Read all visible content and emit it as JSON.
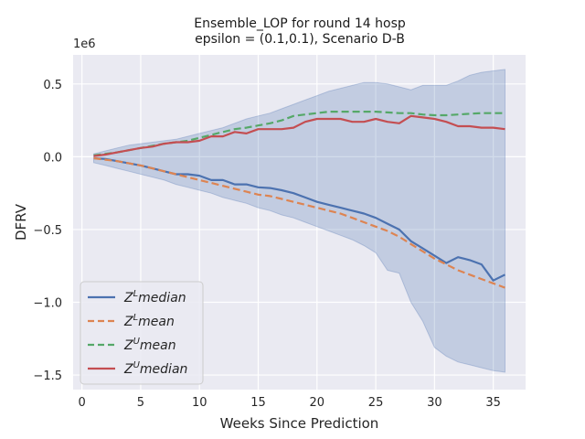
{
  "chart_data": {
    "type": "line",
    "title": "Ensemble_LOP for round 14 hosp",
    "subtitle": "epsilon = (0.1,0.1), Scenario D-B",
    "xlabel": "Weeks Since Prediction",
    "ylabel": "DFRV",
    "y_offset_text": "1e6",
    "xlim": [
      -0.75,
      37.75
    ],
    "ylim": [
      -1.6,
      0.7
    ],
    "y_scale_factor": 1000000,
    "x_ticks": [
      0,
      5,
      10,
      15,
      20,
      25,
      30,
      35
    ],
    "y_ticks": [
      0.5,
      0.0,
      -0.5,
      -1.0,
      -1.5
    ],
    "y_tick_labels": [
      "0.5",
      "0.0",
      "−0.5",
      "−1.0",
      "−1.5"
    ],
    "grid": true,
    "legend_position": "lower-left",
    "x": [
      1,
      2,
      3,
      4,
      5,
      6,
      7,
      8,
      9,
      10,
      11,
      12,
      13,
      14,
      15,
      16,
      17,
      18,
      19,
      20,
      21,
      22,
      23,
      24,
      25,
      26,
      27,
      28,
      29,
      30,
      31,
      32,
      33,
      34,
      35,
      36
    ],
    "band": {
      "upper": [
        0.02,
        0.04,
        0.06,
        0.08,
        0.09,
        0.1,
        0.11,
        0.12,
        0.14,
        0.16,
        0.18,
        0.2,
        0.23,
        0.26,
        0.28,
        0.3,
        0.33,
        0.36,
        0.39,
        0.42,
        0.45,
        0.47,
        0.49,
        0.51,
        0.51,
        0.5,
        0.48,
        0.46,
        0.49,
        0.49,
        0.49,
        0.52,
        0.56,
        0.58,
        0.59,
        0.6
      ],
      "lower": [
        -0.04,
        -0.06,
        -0.08,
        -0.1,
        -0.12,
        -0.14,
        -0.16,
        -0.19,
        -0.21,
        -0.23,
        -0.25,
        -0.28,
        -0.3,
        -0.32,
        -0.35,
        -0.37,
        -0.4,
        -0.42,
        -0.45,
        -0.48,
        -0.51,
        -0.54,
        -0.57,
        -0.61,
        -0.66,
        -0.78,
        -0.8,
        -1.0,
        -1.13,
        -1.31,
        -1.37,
        -1.41,
        -1.43,
        -1.45,
        -1.47,
        -1.48
      ]
    },
    "series": [
      {
        "name": "Z^L median",
        "color": "#4c72b0",
        "dash": "solid",
        "values": [
          -0.01,
          -0.015,
          -0.03,
          -0.045,
          -0.06,
          -0.08,
          -0.1,
          -0.12,
          -0.12,
          -0.13,
          -0.16,
          -0.16,
          -0.19,
          -0.19,
          -0.21,
          -0.215,
          -0.23,
          -0.25,
          -0.28,
          -0.31,
          -0.33,
          -0.35,
          -0.37,
          -0.39,
          -0.42,
          -0.46,
          -0.5,
          -0.58,
          -0.63,
          -0.68,
          -0.73,
          -0.69,
          -0.71,
          -0.74,
          -0.85,
          -0.81
        ]
      },
      {
        "name": "Z^L mean",
        "color": "#dd8452",
        "dash": "dashed",
        "values": [
          -0.01,
          -0.02,
          -0.03,
          -0.045,
          -0.06,
          -0.08,
          -0.1,
          -0.12,
          -0.14,
          -0.16,
          -0.18,
          -0.2,
          -0.22,
          -0.24,
          -0.26,
          -0.27,
          -0.29,
          -0.31,
          -0.33,
          -0.35,
          -0.37,
          -0.39,
          -0.42,
          -0.45,
          -0.48,
          -0.51,
          -0.55,
          -0.6,
          -0.65,
          -0.7,
          -0.74,
          -0.78,
          -0.81,
          -0.84,
          -0.87,
          -0.9
        ]
      },
      {
        "name": "Z^U mean",
        "color": "#55a868",
        "dash": "dashed",
        "values": [
          0.01,
          0.02,
          0.03,
          0.045,
          0.06,
          0.075,
          0.09,
          0.1,
          0.11,
          0.13,
          0.15,
          0.17,
          0.19,
          0.2,
          0.215,
          0.23,
          0.25,
          0.28,
          0.29,
          0.3,
          0.31,
          0.31,
          0.31,
          0.31,
          0.31,
          0.305,
          0.3,
          0.3,
          0.29,
          0.285,
          0.285,
          0.29,
          0.295,
          0.3,
          0.3,
          0.3
        ]
      },
      {
        "name": "Z^U median",
        "color": "#c44e52",
        "dash": "solid",
        "values": [
          0.005,
          0.015,
          0.03,
          0.045,
          0.06,
          0.07,
          0.09,
          0.1,
          0.1,
          0.11,
          0.14,
          0.14,
          0.17,
          0.16,
          0.19,
          0.19,
          0.19,
          0.2,
          0.24,
          0.26,
          0.26,
          0.26,
          0.24,
          0.24,
          0.26,
          0.24,
          0.23,
          0.28,
          0.27,
          0.26,
          0.24,
          0.21,
          0.21,
          0.2,
          0.2,
          0.19
        ]
      }
    ],
    "legend": [
      {
        "base": "Z",
        "sup": "L",
        "rest": "median",
        "color": "#4c72b0",
        "dash": "solid"
      },
      {
        "base": "Z",
        "sup": "L",
        "rest": "mean",
        "color": "#dd8452",
        "dash": "dashed"
      },
      {
        "base": "Z",
        "sup": "U",
        "rest": "mean",
        "color": "#55a868",
        "dash": "dashed"
      },
      {
        "base": "Z",
        "sup": "U",
        "rest": "median",
        "color": "#c44e52",
        "dash": "solid"
      }
    ],
    "colors": {
      "background": "#eaeaf2",
      "grid": "#ffffff",
      "band": "#4c72b0"
    }
  }
}
